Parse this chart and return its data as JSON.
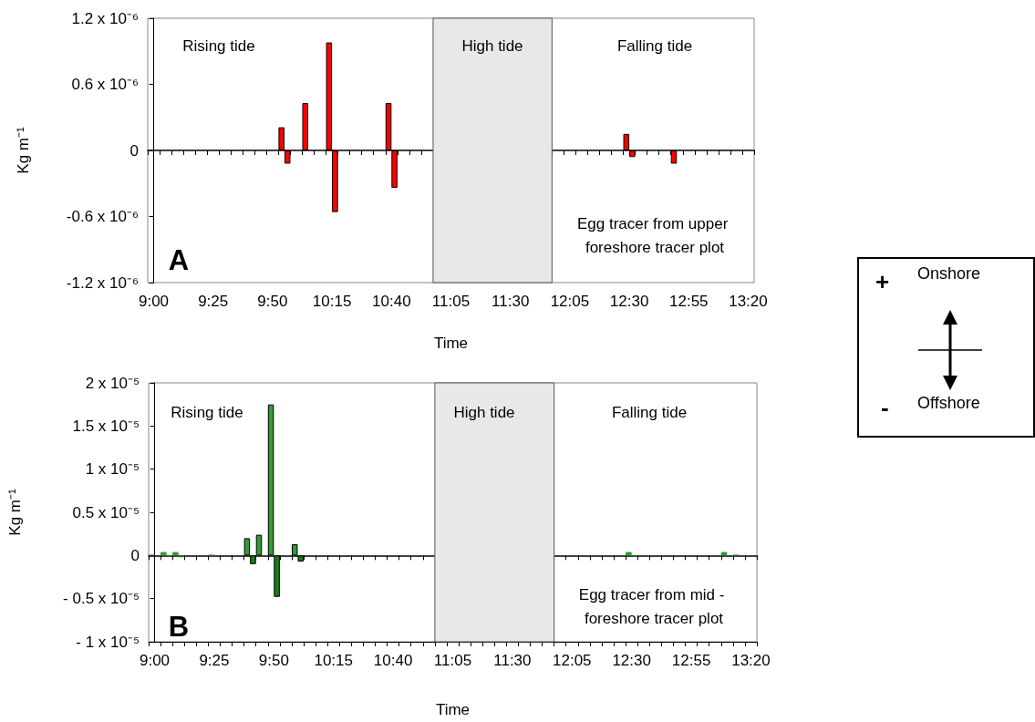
{
  "chart_data": [
    {
      "type": "bar",
      "xlabel": "Time",
      "ylabel": "Kg m⁻¹",
      "categories": [
        "9:00",
        null,
        null,
        null,
        null,
        "9:25",
        null,
        null,
        null,
        null,
        "9:50",
        null,
        null,
        null,
        null,
        "10:15",
        null,
        null,
        null,
        null,
        "10:40",
        null,
        null,
        null,
        null,
        "11:05",
        null,
        null,
        null,
        null,
        "11:30",
        null,
        null,
        null,
        null,
        "12:05",
        null,
        null,
        null,
        null,
        "12:30",
        null,
        null,
        null,
        null,
        "12:55",
        null,
        null,
        null,
        null,
        "13:20"
      ],
      "series": [
        {
          "color": "#ff0000",
          "values": [
            null,
            null,
            null,
            null,
            null,
            null,
            null,
            null,
            null,
            null,
            null,
            2.1e-07,
            null,
            4.3e-07,
            null,
            9.8e-07,
            null,
            null,
            null,
            null,
            4.3e-07,
            null,
            null,
            null,
            null,
            null,
            null,
            null,
            null,
            null,
            null,
            null,
            null,
            null,
            null,
            null,
            null,
            null,
            null,
            null,
            1.5e-07,
            null,
            null,
            null,
            -1.2e-07,
            null,
            null,
            null,
            null,
            null,
            null
          ]
        },
        {
          "color": "#ff0000",
          "values": [
            null,
            null,
            null,
            null,
            null,
            null,
            null,
            null,
            null,
            null,
            null,
            -1.2e-07,
            null,
            null,
            null,
            -5.6e-07,
            null,
            null,
            null,
            null,
            -3.4e-07,
            null,
            null,
            null,
            null,
            null,
            null,
            null,
            null,
            null,
            null,
            null,
            null,
            null,
            null,
            null,
            null,
            null,
            null,
            null,
            -6e-08,
            null,
            null,
            null,
            null,
            null,
            null,
            null,
            null,
            null,
            null
          ]
        }
      ],
      "ylim": [
        -1.2e-06,
        1.2e-06
      ],
      "yticks": [
        {
          "value": -1.2e-06,
          "label": "-1.2 x 10⁻⁶"
        },
        {
          "value": -6e-07,
          "label": "-0.6 x 10⁻⁶"
        },
        0,
        {
          "value": 6e-07,
          "label": "0.6 x 10⁻⁶"
        },
        {
          "value": 1.2e-06,
          "label": "1.2 x 10⁻⁶"
        }
      ],
      "annotations": [
        "Rising tide",
        "High tide",
        "Falling tide",
        "Egg tracer from upper foreshore tracer plot",
        "A"
      ]
    },
    {
      "type": "bar",
      "xlabel": "Time",
      "ylabel": "Kg m⁻¹",
      "categories": [
        "9:00",
        null,
        null,
        null,
        null,
        "9:25",
        null,
        null,
        null,
        null,
        "9:50",
        null,
        null,
        null,
        null,
        "10:15",
        null,
        null,
        null,
        null,
        "10:40",
        null,
        null,
        null,
        null,
        "11:05",
        null,
        null,
        null,
        null,
        "11:30",
        null,
        null,
        null,
        null,
        "12:05",
        null,
        null,
        null,
        null,
        "12:30",
        null,
        null,
        null,
        null,
        "12:55",
        null,
        null,
        null,
        null,
        "13:20"
      ],
      "series": [
        {
          "color": "#339933",
          "values": [
            1e-07,
            4e-07,
            4e-07,
            null,
            null,
            1e-07,
            null,
            null,
            2e-06,
            2.4e-06,
            1.75e-05,
            null,
            1.3e-06,
            null,
            null,
            null,
            null,
            null,
            null,
            null,
            null,
            null,
            null,
            null,
            null,
            null,
            null,
            null,
            null,
            null,
            null,
            null,
            null,
            null,
            null,
            null,
            null,
            null,
            null,
            null,
            4e-07,
            null,
            null,
            null,
            null,
            null,
            null,
            null,
            4e-07,
            1e-07,
            null
          ]
        },
        {
          "color": "#1a7a1a",
          "values": [
            null,
            -1e-07,
            -2e-07,
            null,
            null,
            null,
            null,
            null,
            -1e-06,
            null,
            -4.8e-06,
            null,
            -7e-07,
            null,
            null,
            null,
            null,
            null,
            null,
            null,
            null,
            null,
            null,
            null,
            null,
            null,
            null,
            null,
            null,
            null,
            null,
            null,
            null,
            null,
            null,
            null,
            null,
            null,
            null,
            null,
            -1e-07,
            null,
            null,
            null,
            null,
            null,
            null,
            null,
            null,
            null,
            null
          ]
        }
      ],
      "ylim": [
        -1e-05,
        2e-05
      ],
      "yticks": [
        {
          "value": -1e-05,
          "label": "- 1 x 10⁻⁵"
        },
        {
          "value": -5e-06,
          "label": "- 0.5 x 10⁻⁵"
        },
        0,
        {
          "value": 5e-06,
          "label": "0.5 x 10⁻⁵"
        },
        {
          "value": 1e-05,
          "label": "1 x 10⁻⁵"
        },
        {
          "value": 1.5e-05,
          "label": "1.5 x 10⁻⁵"
        },
        {
          "value": 2e-05,
          "label": "2 x 10⁻⁵"
        }
      ],
      "annotations": [
        "Rising tide",
        "High tide",
        "Falling tide",
        "Egg tracer from mid - foreshore tracer plot",
        "B"
      ]
    },
    {
      "type": "other",
      "annotations": [
        "+",
        "Onshore",
        "-",
        "Offshore"
      ]
    }
  ]
}
